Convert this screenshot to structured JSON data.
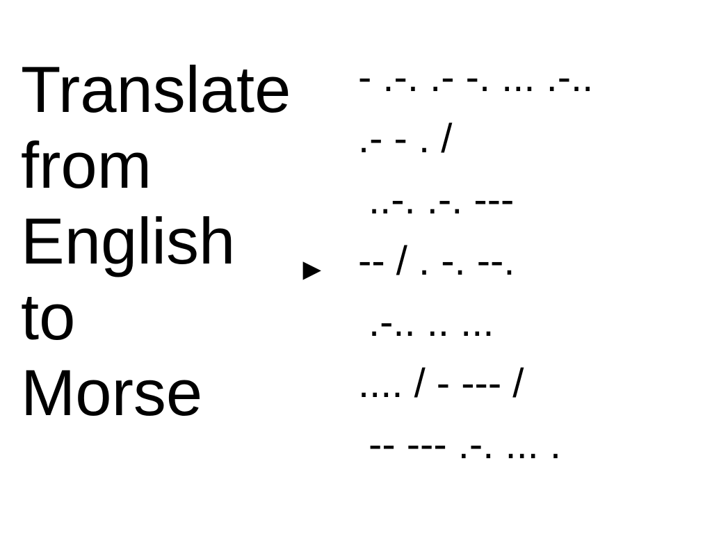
{
  "heading": {
    "lines": [
      "Translate",
      "from",
      "English",
      "to",
      "Morse"
    ]
  },
  "arrow_glyph": "►",
  "morse": {
    "lines": [
      "- .-. .- -. ... .-..",
      ".- - . /",
      " ..-. .-. ---",
      "-- / . -. --.",
      " .-.. .. ...",
      ".... / - --- /",
      " -- --- .-. ... ."
    ]
  }
}
